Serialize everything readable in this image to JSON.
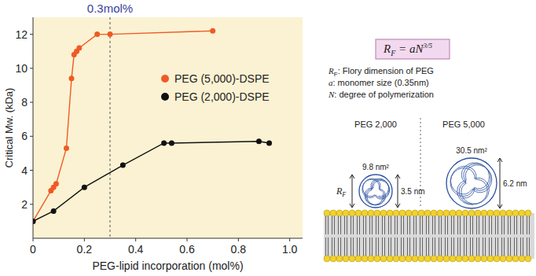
{
  "chart_data": {
    "type": "line",
    "x_label": "PEG-lipid incorporation  (mol%)",
    "y_label": "Critical Mw. (kDa)",
    "xlim": [
      0,
      1.05
    ],
    "xticks": [
      0,
      0.2,
      0.4,
      0.6,
      0.8,
      {
        "value": 1,
        "label": "1.0"
      }
    ],
    "ylim": [
      0,
      13
    ],
    "yticks": [
      2,
      4,
      6,
      8,
      10,
      12
    ],
    "grid": false,
    "legend": "top-right",
    "marker": "circle",
    "line_style": "solid",
    "annotations": [
      {
        "x": 0.3,
        "text": "0.3mol%"
      }
    ],
    "series": [
      {
        "name": "PEG (5,000)-DSPE",
        "color": "#f05a24",
        "x": [
          0,
          0.07,
          0.08,
          0.09,
          0.13,
          0.15,
          0.16,
          0.17,
          0.18,
          0.25,
          0.3,
          0.7
        ],
        "values": [
          1.0,
          2.8,
          3.0,
          3.2,
          5.3,
          9.4,
          10.8,
          11.0,
          11.2,
          12.0,
          12.0,
          12.2
        ]
      },
      {
        "name": "PEG (2,000)-DSPE",
        "color": "#111111",
        "x": [
          0,
          0.08,
          0.2,
          0.35,
          0.51,
          0.54,
          0.88,
          0.92
        ],
        "values": [
          1.0,
          1.6,
          3.0,
          4.3,
          5.6,
          5.6,
          5.7,
          5.6
        ]
      }
    ]
  },
  "diagram": {
    "formula": {
      "symbol": "R",
      "subscript": "F",
      "rhs": " = aN",
      "exponent": "3/5"
    },
    "definitions": [
      {
        "symbol": "R",
        "subscript": "F",
        "text": ": Flory dimension of PEG"
      },
      {
        "symbol": "a",
        "text": ": monomer size (0.35nm)"
      },
      {
        "symbol": "N",
        "text": ": degree of polymerization"
      }
    ],
    "panels": [
      {
        "label": "PEG 2,000",
        "area": "9.8 nm²",
        "height": "3.5 nm",
        "height_symbol": "R",
        "height_subscript": "F"
      },
      {
        "label": "PEG 5,000",
        "area": "30.5 nm²",
        "height": "6.2 nm"
      }
    ]
  }
}
